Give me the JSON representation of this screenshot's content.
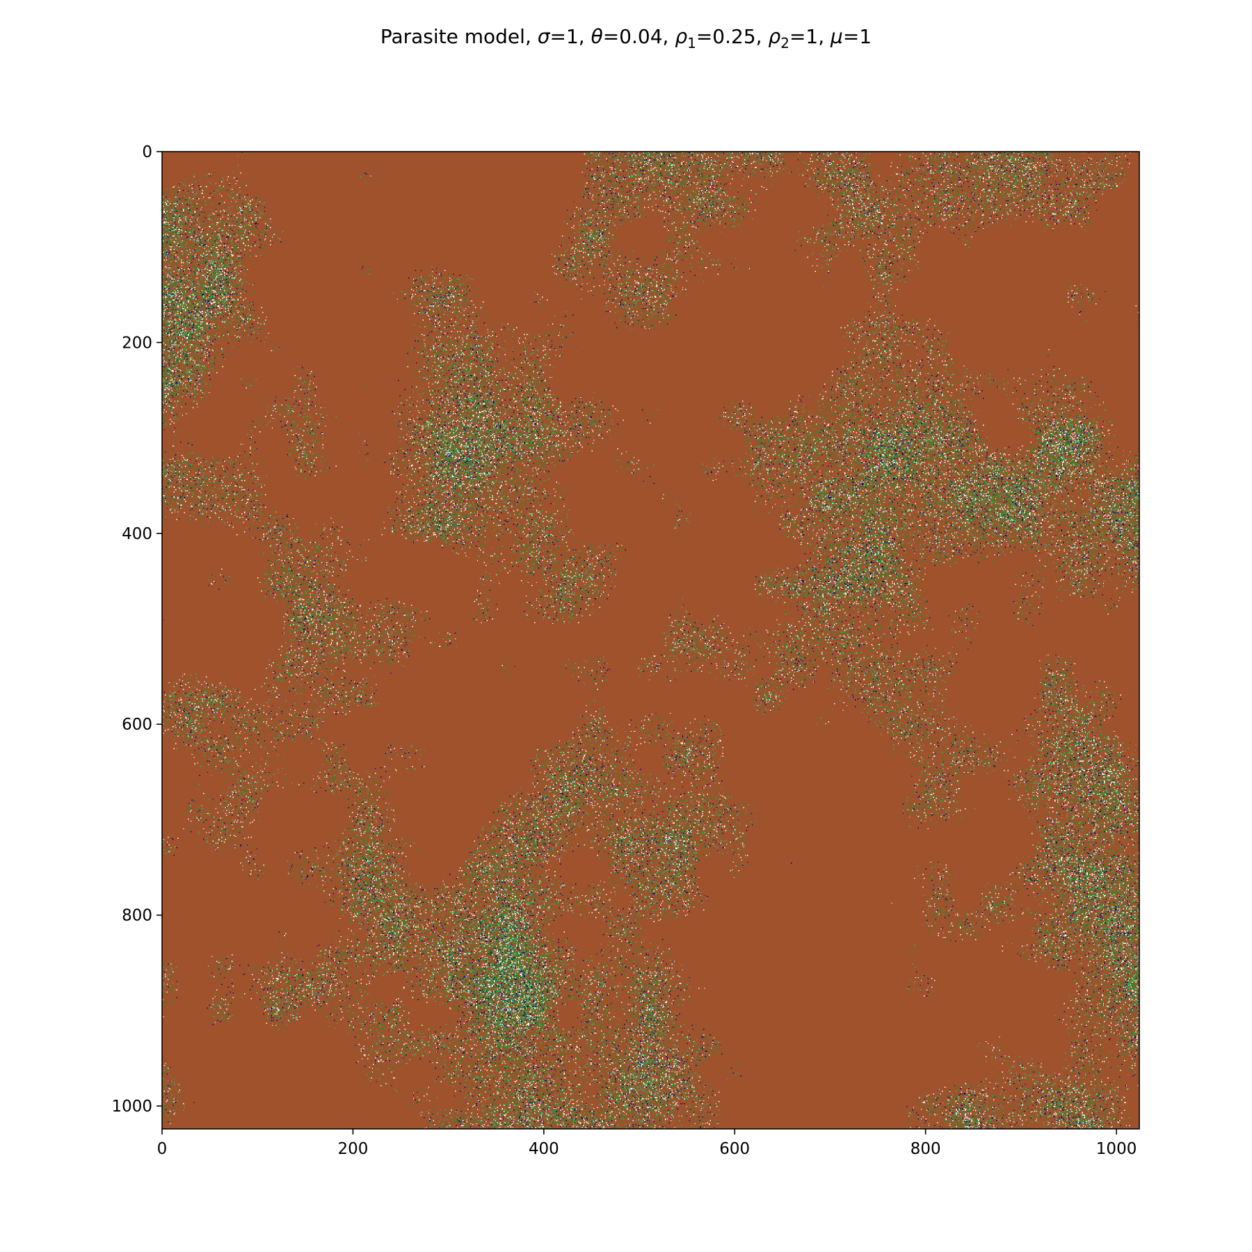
{
  "chart_data": {
    "type": "heatmap",
    "title": "Parasite model, σ=1, θ=0.04, ρ1=0.25, ρ2=1, μ=1",
    "title_parts": {
      "prefix": "Parasite model, ",
      "params": [
        {
          "symbol": "σ",
          "sub": "",
          "value": "1"
        },
        {
          "symbol": "θ",
          "sub": "",
          "value": "0.04"
        },
        {
          "symbol": "ρ",
          "sub": "1",
          "value": "0.25"
        },
        {
          "symbol": "ρ",
          "sub": "2",
          "value": "1"
        },
        {
          "symbol": "μ",
          "sub": "",
          "value": "1"
        }
      ]
    },
    "grid_size": 1024,
    "x_range": [
      0,
      1024
    ],
    "y_range": [
      0,
      1024
    ],
    "y_inverted": true,
    "x_ticks": [
      0,
      200,
      400,
      600,
      800,
      1000
    ],
    "y_ticks": [
      0,
      200,
      400,
      600,
      800,
      1000
    ],
    "x_tick_labels": [
      "0",
      "200",
      "400",
      "600",
      "800",
      "1000"
    ],
    "y_tick_labels": [
      "0",
      "200",
      "400",
      "600",
      "800",
      "1000"
    ],
    "xlabel": "",
    "ylabel": "",
    "grid": false,
    "legend": "none",
    "colors": {
      "background_state": "#a0522d",
      "green_state": "#228b22",
      "light_state": "#3cb371",
      "blue_state": "#00008b",
      "white_state": "#ffffff"
    },
    "approx_state_fractions": {
      "background_state": 0.72,
      "green_state": 0.13,
      "light_state": 0.06,
      "white_state": 0.06,
      "blue_state": 0.03
    }
  }
}
